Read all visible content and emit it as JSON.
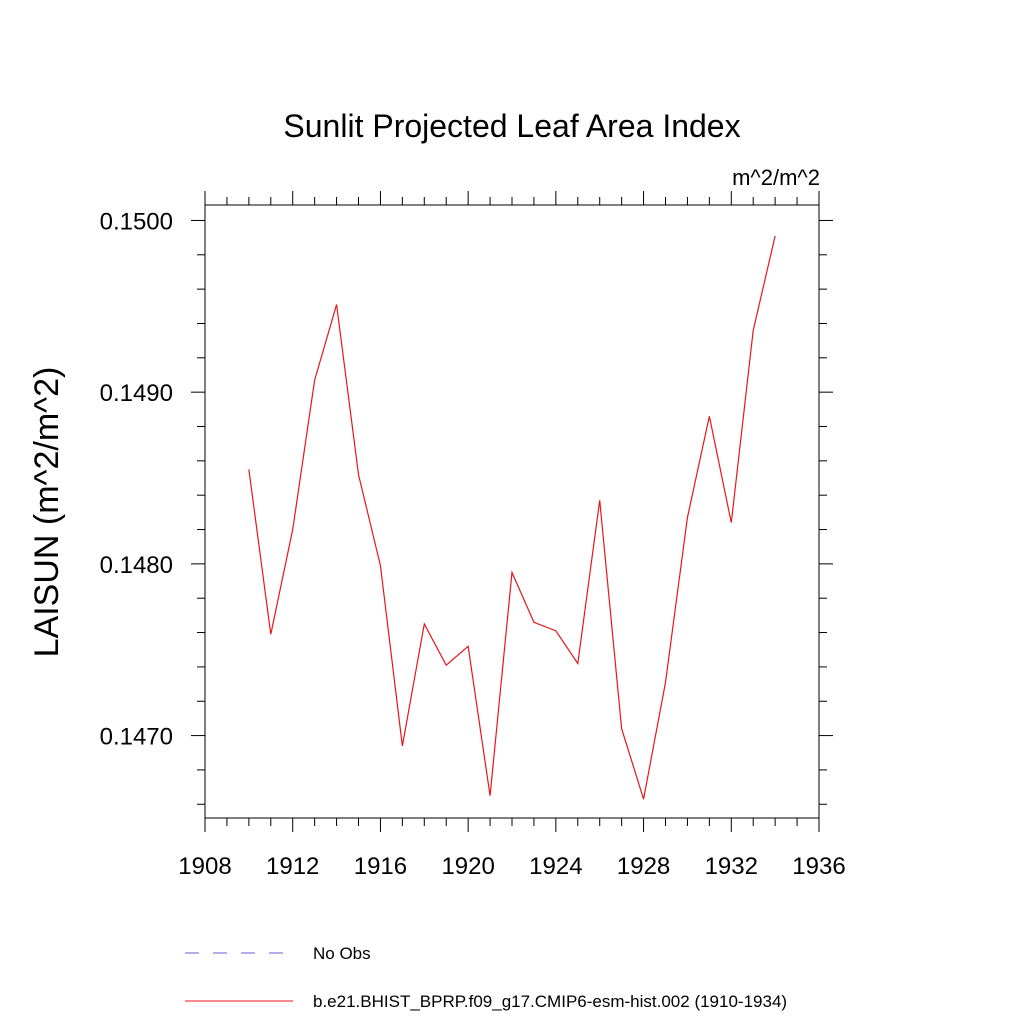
{
  "chart_data": {
    "type": "line",
    "title": "Sunlit Projected Leaf Area Index",
    "units": "m^2/m^2",
    "ylabel": "LAISUN  (m^2/m^2)",
    "xlabel": "",
    "xlim": [
      1908,
      1936
    ],
    "ylim": [
      0.14652,
      0.15009
    ],
    "x_ticks": [
      "1908",
      "1912",
      "1916",
      "1920",
      "1924",
      "1928",
      "1932",
      "1936"
    ],
    "y_ticks": [
      "0.1470",
      "0.1480",
      "0.1490",
      "0.1500"
    ],
    "grid": false,
    "legend": [
      {
        "label": "No Obs",
        "color": "#6a5acd",
        "style": "dashed"
      },
      {
        "label": "b.e21.BHIST_BPRP.f09_g17.CMIP6-esm-hist.002 (1910-1934)",
        "color": "#e8161b",
        "style": "solid"
      }
    ],
    "series": [
      {
        "name": "b.e21.BHIST_BPRP.f09_g17.CMIP6-esm-hist.002 (1910-1934)",
        "color": "#e8161b",
        "x": [
          1910,
          1911,
          1912,
          1913,
          1914,
          1915,
          1916,
          1917,
          1918,
          1919,
          1920,
          1921,
          1922,
          1923,
          1924,
          1925,
          1926,
          1927,
          1928,
          1929,
          1930,
          1931,
          1932,
          1933,
          1934
        ],
        "y": [
          0.14855,
          0.14759,
          0.1482,
          0.14907,
          0.14951,
          0.14852,
          0.14799,
          0.14694,
          0.14765,
          0.14741,
          0.14752,
          0.14665,
          0.14795,
          0.14766,
          0.14761,
          0.14742,
          0.14837,
          0.14704,
          0.14663,
          0.14731,
          0.14827,
          0.14886,
          0.14824,
          0.14936,
          0.14991
        ]
      }
    ]
  }
}
